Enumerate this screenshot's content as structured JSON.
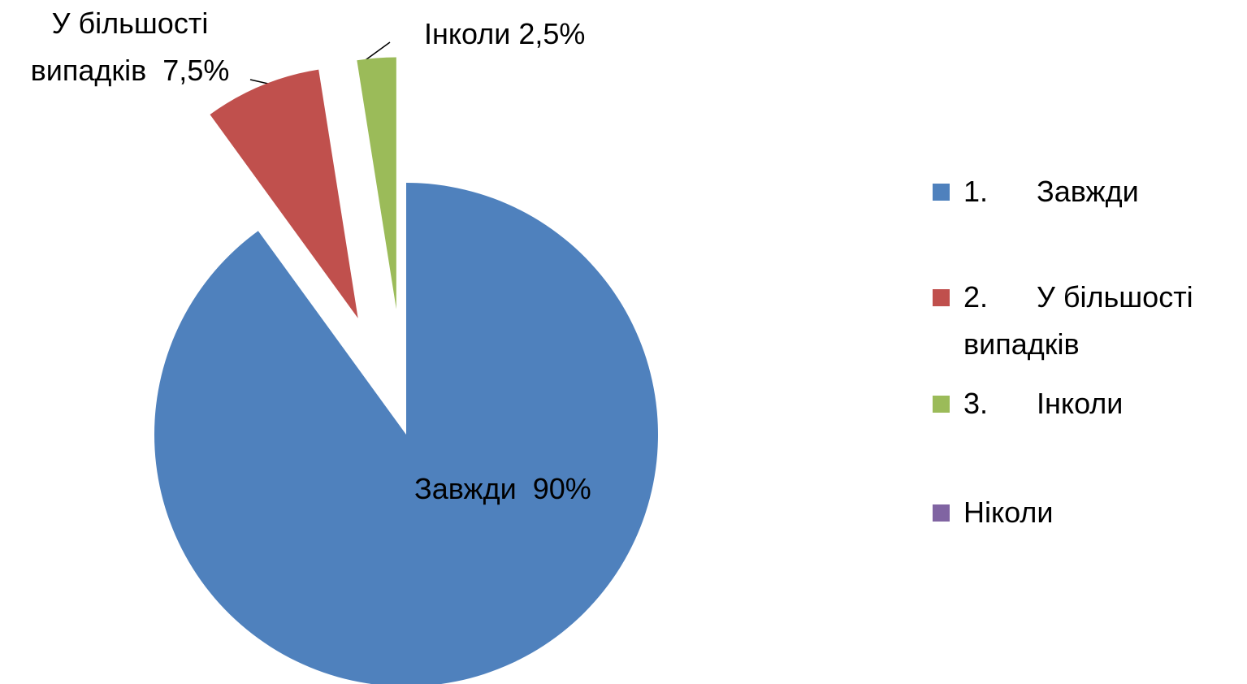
{
  "chart_data": {
    "type": "pie",
    "categories": [
      "1.      Завжди",
      "2.      У більшості випадків",
      "3.      Інколи",
      "Ніколи"
    ],
    "values": [
      90,
      7.5,
      2.5,
      0
    ],
    "value_labels": [
      "Завжди  90%",
      "У більшості випадків  7,5%",
      "Інколи 2,5%",
      null
    ],
    "colors": [
      "#4f81bd",
      "#c0504d",
      "#9bbb59",
      "#8064a2"
    ],
    "legend": "right"
  }
}
